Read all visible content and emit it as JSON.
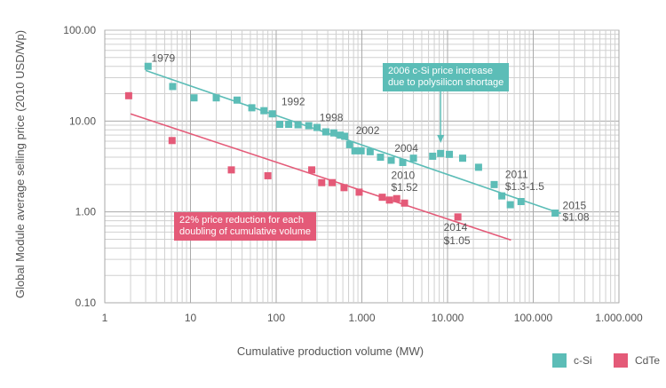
{
  "chart_data": {
    "type": "scatter",
    "x_scale": "log",
    "y_scale": "log",
    "xlim": [
      1,
      1000000
    ],
    "ylim": [
      0.1,
      100
    ],
    "ylabel": "Global Module average selling price (2010 USD/Wp)",
    "xlabel": "Cumulative production volume (MW)",
    "x_ticks": [
      1,
      10,
      100,
      1000,
      10000,
      100000,
      1000000
    ],
    "x_tick_labels": [
      "1",
      "10",
      "100",
      "1.000",
      "10.000",
      "100.000",
      "1.000.000"
    ],
    "y_ticks": [
      0.1,
      1,
      10,
      100
    ],
    "y_tick_labels": [
      "0.10",
      "1.00",
      "10.00",
      "100.00"
    ],
    "grid": true,
    "legend_position": "bottom-right",
    "series": [
      {
        "name": "c-Si",
        "color": "#5cbdb7",
        "points": [
          [
            3.2,
            40
          ],
          [
            6.2,
            24
          ],
          [
            11,
            18
          ],
          [
            20,
            18
          ],
          [
            35,
            17
          ],
          [
            52,
            14
          ],
          [
            72,
            13
          ],
          [
            90,
            12
          ],
          [
            110,
            9.2
          ],
          [
            140,
            9.2
          ],
          [
            180,
            9.1
          ],
          [
            240,
            8.9
          ],
          [
            300,
            8.5
          ],
          [
            380,
            7.6
          ],
          [
            470,
            7.4
          ],
          [
            560,
            7.0
          ],
          [
            630,
            6.8
          ],
          [
            720,
            5.5
          ],
          [
            830,
            4.7
          ],
          [
            980,
            4.7
          ],
          [
            1250,
            4.6
          ],
          [
            1650,
            4.0
          ],
          [
            2200,
            3.7
          ],
          [
            3000,
            3.5
          ],
          [
            4000,
            3.9
          ],
          [
            6700,
            4.1
          ],
          [
            8300,
            4.4
          ],
          [
            10500,
            4.3
          ],
          [
            15000,
            3.9
          ],
          [
            23000,
            3.1
          ],
          [
            35000,
            2.0
          ],
          [
            43000,
            1.5
          ],
          [
            54000,
            1.2
          ],
          [
            72000,
            1.3
          ],
          [
            180000,
            0.97
          ]
        ],
        "trend": [
          [
            3,
            36
          ],
          [
            210000,
            0.96
          ]
        ]
      },
      {
        "name": "CdTe",
        "color": "#e45a78",
        "points": [
          [
            1.9,
            19
          ],
          [
            6.1,
            6.1
          ],
          [
            30,
            2.9
          ],
          [
            80,
            2.5
          ],
          [
            260,
            2.9
          ],
          [
            340,
            2.1
          ],
          [
            450,
            2.1
          ],
          [
            620,
            1.85
          ],
          [
            930,
            1.65
          ],
          [
            1730,
            1.45
          ],
          [
            2100,
            1.35
          ],
          [
            2550,
            1.4
          ],
          [
            3150,
            1.25
          ],
          [
            13200,
            0.88
          ]
        ],
        "trend": [
          [
            2,
            12
          ],
          [
            55000,
            0.49
          ]
        ]
      }
    ],
    "annotations": [
      {
        "text": "1979",
        "x": 3.5,
        "y": 45
      },
      {
        "text": "1992",
        "x": 115,
        "y": 15
      },
      {
        "text": "1998",
        "x": 320,
        "y": 10
      },
      {
        "text": "2002",
        "x": 850,
        "y": 7.2
      },
      {
        "text": "2004",
        "x": 2400,
        "y": 4.6
      },
      {
        "text": "2011",
        "x": 47000,
        "y": 2.35
      },
      {
        "text": "$1.3-1.5",
        "x": 47000,
        "y": 1.75
      },
      {
        "text": "2015",
        "x": 220000,
        "y": 1.07
      },
      {
        "text": "$1.08",
        "x": 220000,
        "y": 0.8
      },
      {
        "text": "2010",
        "x": 2200,
        "y": 2.3
      },
      {
        "text": "$1.52",
        "x": 2200,
        "y": 1.7
      },
      {
        "text": "2014",
        "x": 9000,
        "y": 0.62
      },
      {
        "text": "$1.05",
        "x": 9000,
        "y": 0.44
      }
    ],
    "callouts": {
      "csi": "2006 c-Si price increase due to polysilicon shortage",
      "csi_line1": "2006 c-Si price increase",
      "csi_line2": "due to polysilicon shortage",
      "csi_arrow_x": 8300,
      "cdte_line1": "22% price reduction for each",
      "cdte_line2": "doubling of cumulative volume"
    }
  }
}
